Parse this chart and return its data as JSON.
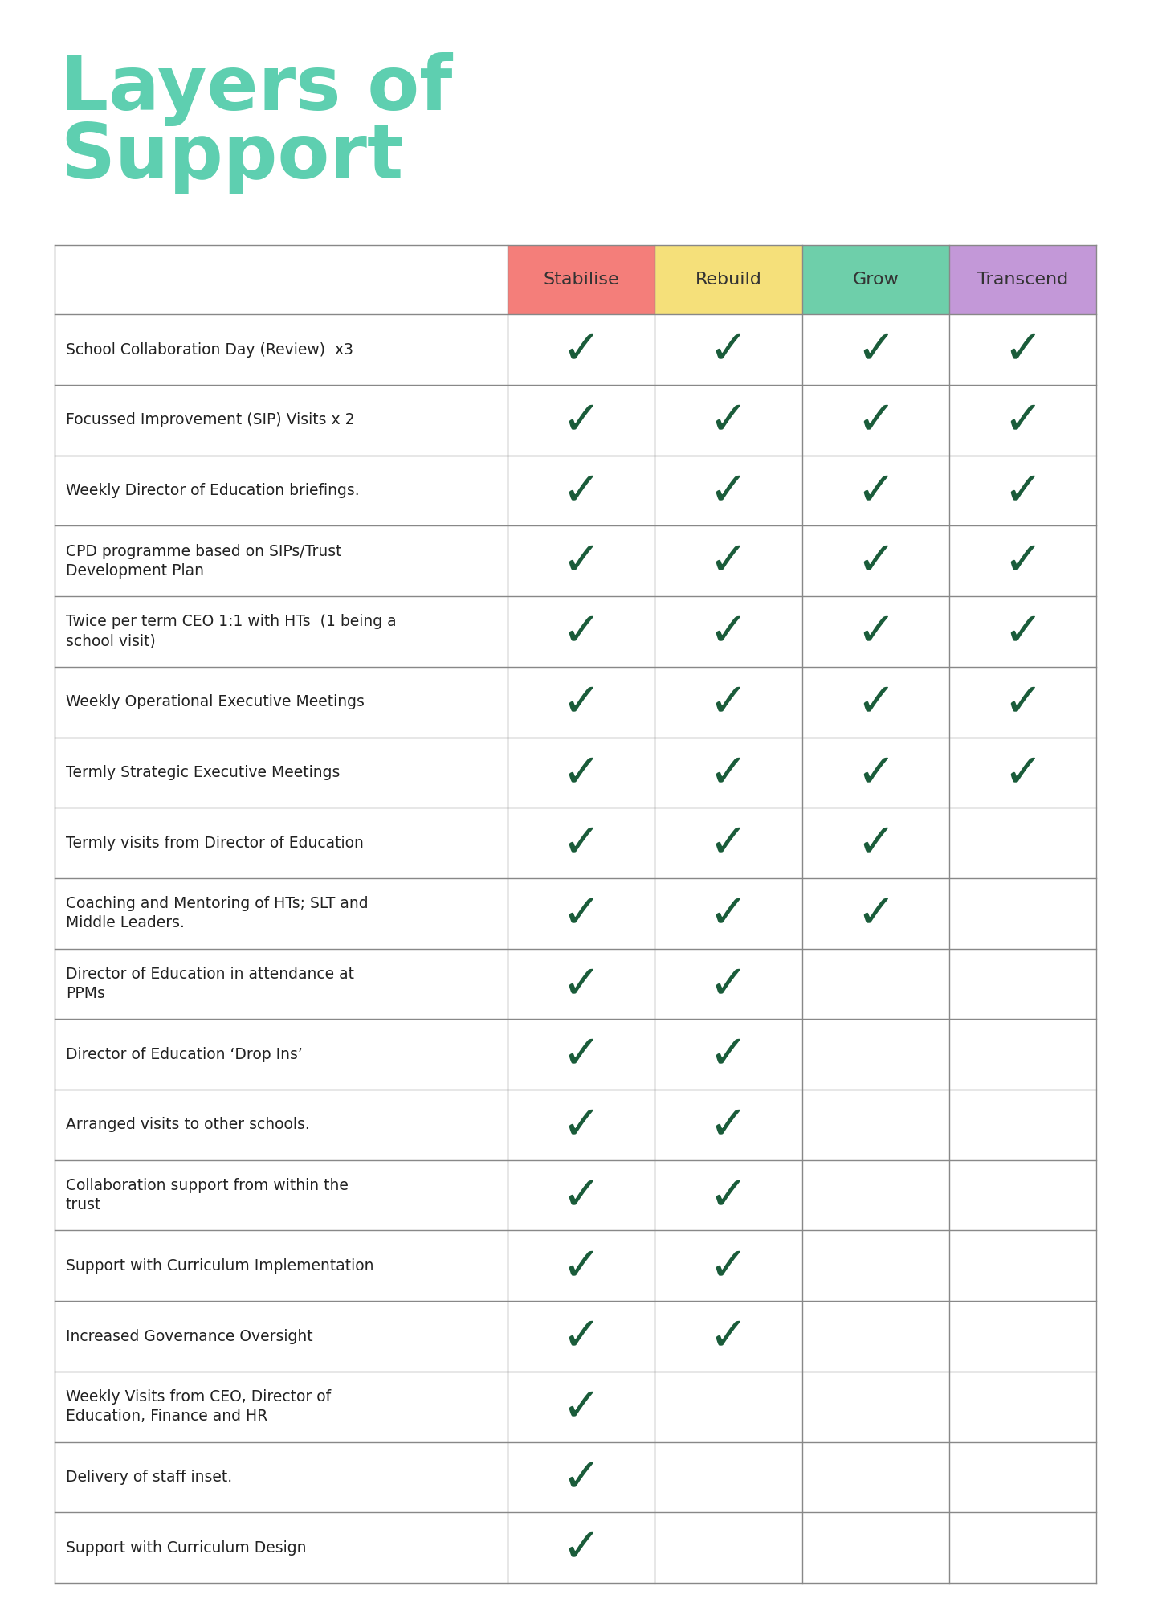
{
  "title_line1": "Layers of",
  "title_line2": "Support",
  "title_color": "#5ecfb0",
  "background_color": "#ffffff",
  "header_labels": [
    "Stabilise",
    "Rebuild",
    "Grow",
    "Transcend"
  ],
  "header_colors": [
    "#f47e7a",
    "#f5e07a",
    "#6ecfaa",
    "#c398d8"
  ],
  "header_text_color": "#333333",
  "rows": [
    {
      "label": "School Collaboration Day (Review)  x3",
      "checks": [
        true,
        true,
        true,
        true
      ]
    },
    {
      "label": "Focussed Improvement (SIP) Visits x 2",
      "checks": [
        true,
        true,
        true,
        true
      ]
    },
    {
      "label": "Weekly Director of Education briefings.",
      "checks": [
        true,
        true,
        true,
        true
      ]
    },
    {
      "label": "CPD programme based on SIPs/Trust\nDevelopment Plan",
      "checks": [
        true,
        true,
        true,
        true
      ]
    },
    {
      "label": "Twice per term CEO 1:1 with HTs  (1 being a\nschool visit)",
      "checks": [
        true,
        true,
        true,
        true
      ]
    },
    {
      "label": "Weekly Operational Executive Meetings",
      "checks": [
        true,
        true,
        true,
        true
      ]
    },
    {
      "label": "Termly Strategic Executive Meetings",
      "checks": [
        true,
        true,
        true,
        true
      ]
    },
    {
      "label": "Termly visits from Director of Education",
      "checks": [
        true,
        true,
        true,
        false
      ]
    },
    {
      "label": "Coaching and Mentoring of HTs; SLT and\nMiddle Leaders.",
      "checks": [
        true,
        true,
        true,
        false
      ]
    },
    {
      "label": "Director of Education in attendance at\nPPMs",
      "checks": [
        true,
        true,
        false,
        false
      ]
    },
    {
      "label": "Director of Education ‘Drop Ins’",
      "checks": [
        true,
        true,
        false,
        false
      ]
    },
    {
      "label": "Arranged visits to other schools.",
      "checks": [
        true,
        true,
        false,
        false
      ]
    },
    {
      "label": "Collaboration support from within the\ntrust",
      "checks": [
        true,
        true,
        false,
        false
      ]
    },
    {
      "label": "Support with Curriculum Implementation",
      "checks": [
        true,
        true,
        false,
        false
      ]
    },
    {
      "label": "Increased Governance Oversight",
      "checks": [
        true,
        true,
        false,
        false
      ]
    },
    {
      "label": "Weekly Visits from CEO, Director of\nEducation, Finance and HR",
      "checks": [
        true,
        false,
        false,
        false
      ]
    },
    {
      "label": "Delivery of staff inset.",
      "checks": [
        true,
        false,
        false,
        false
      ]
    },
    {
      "label": "Support with Curriculum Design",
      "checks": [
        true,
        false,
        false,
        false
      ]
    }
  ],
  "check_color": "#1a5c3a",
  "row_text_color": "#222222",
  "grid_color": "#888888"
}
